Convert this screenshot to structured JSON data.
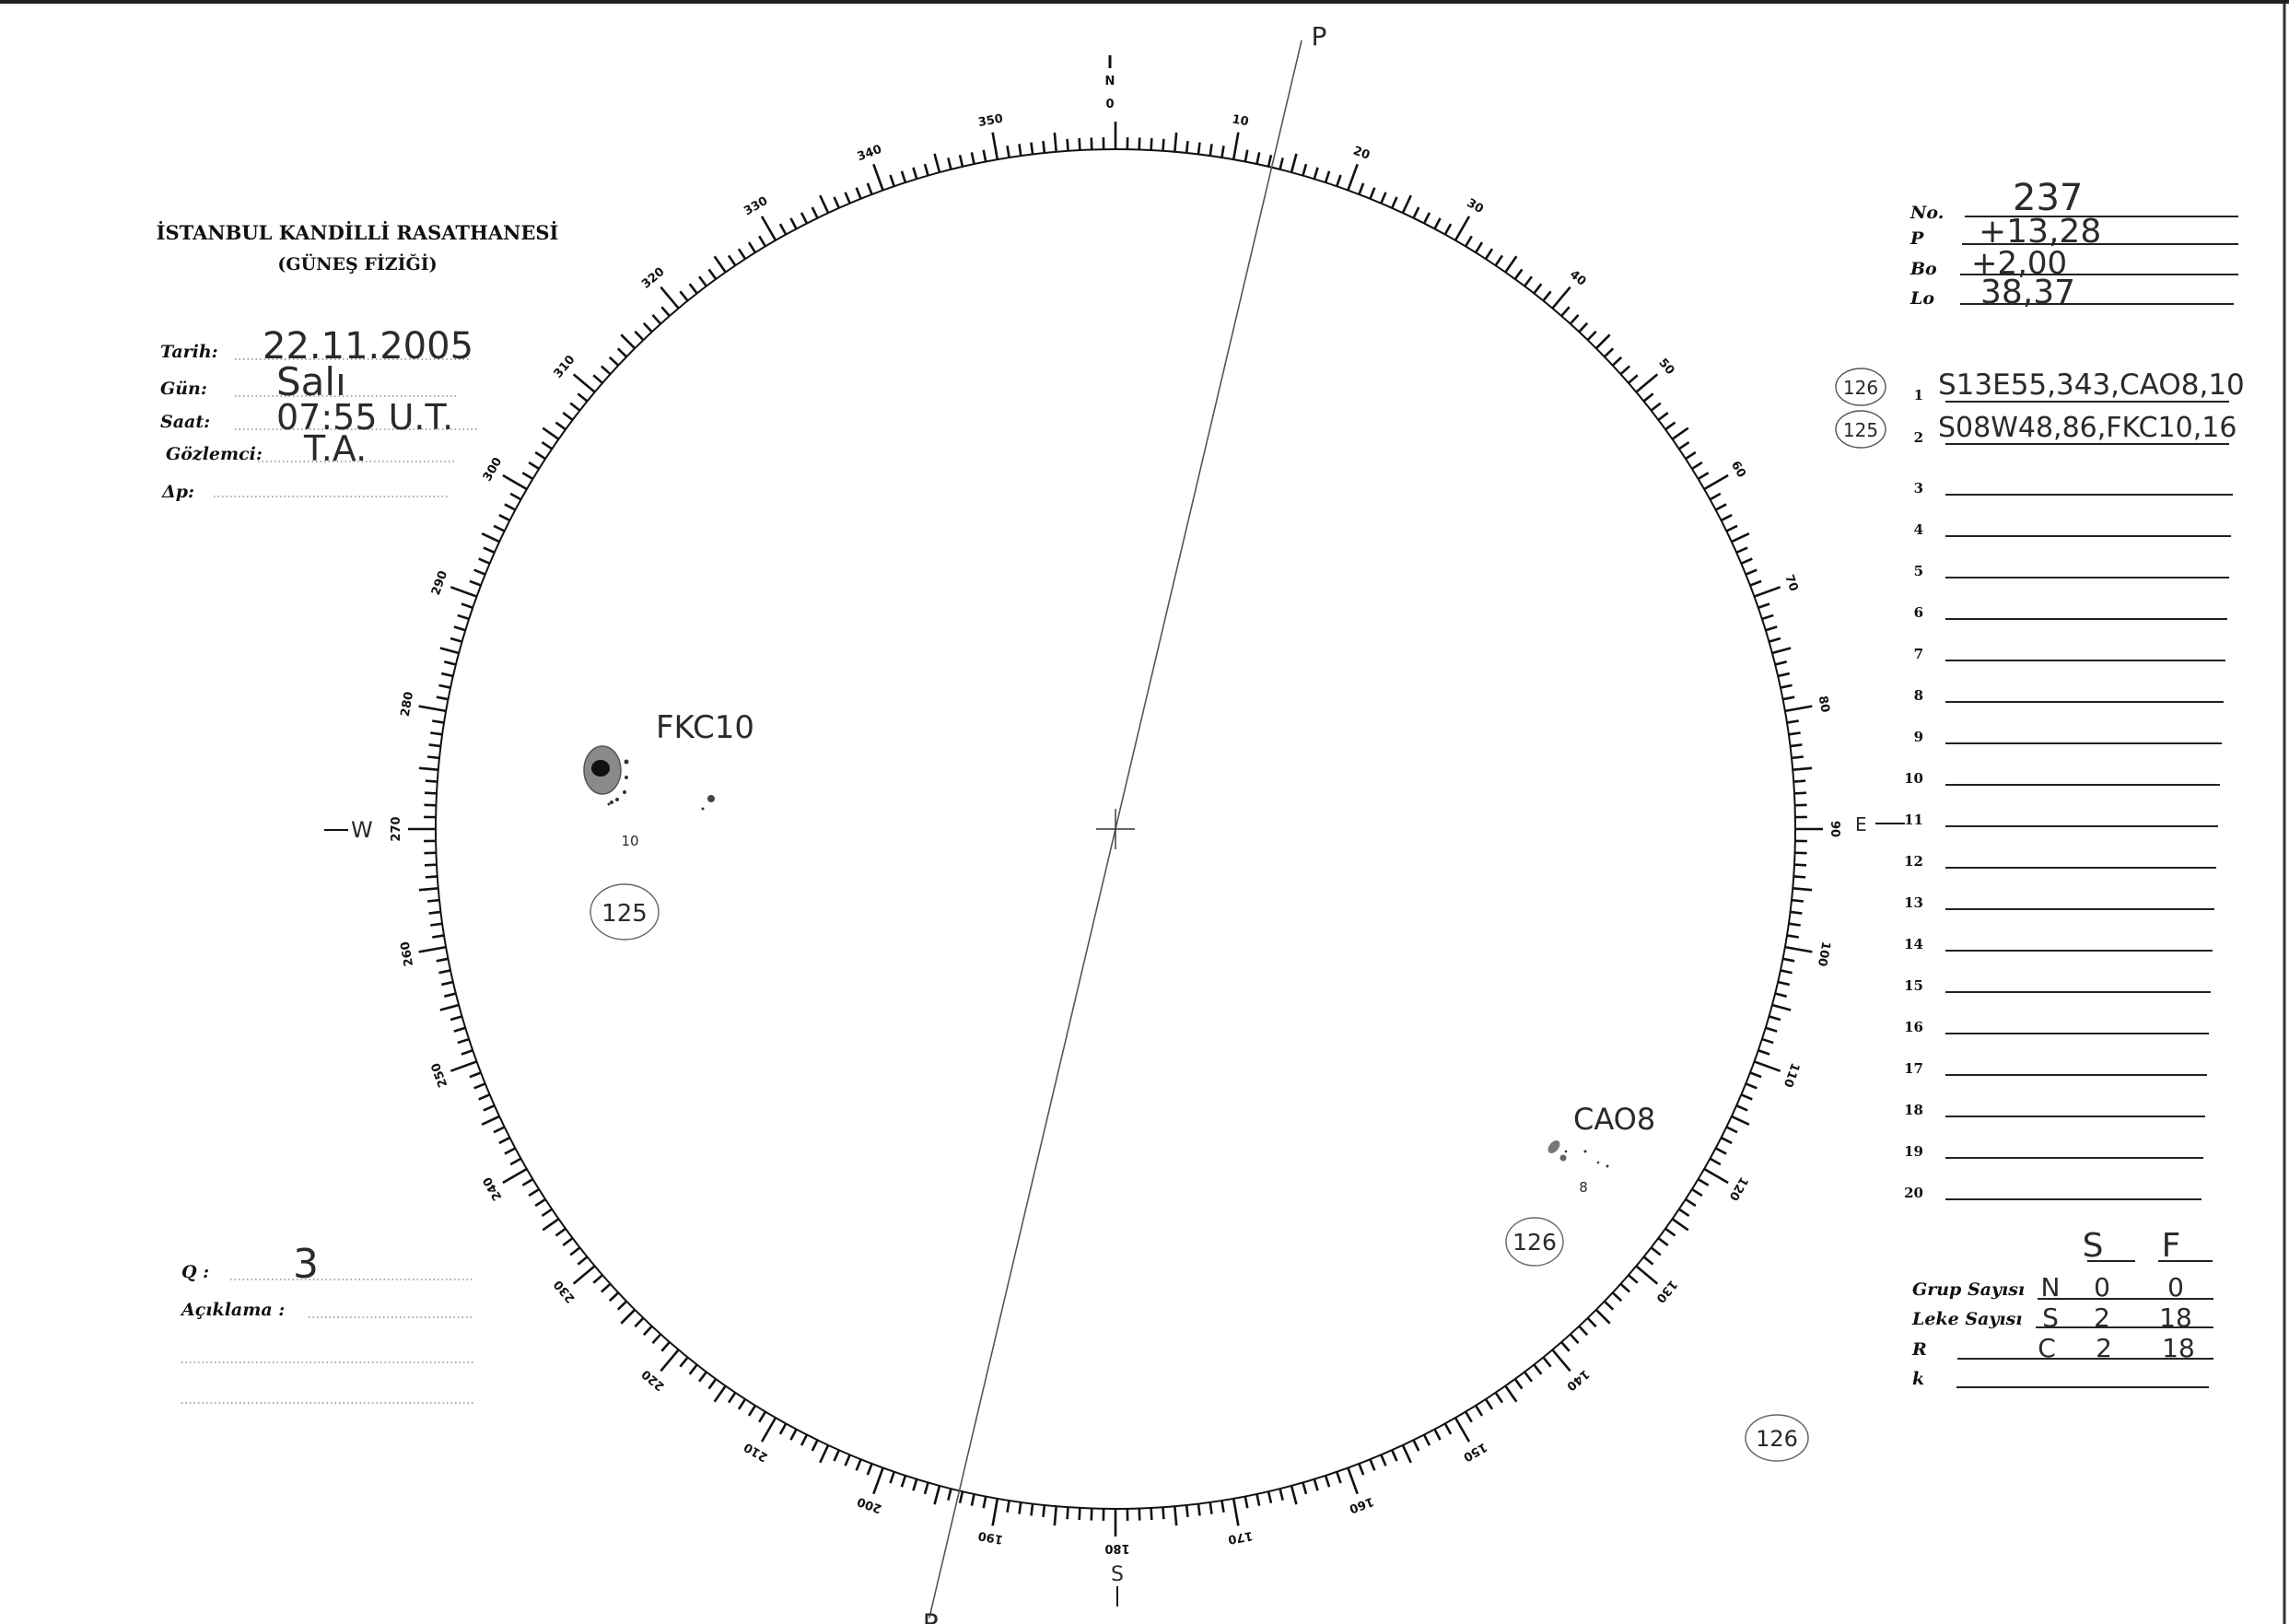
{
  "header": {
    "institution": "İSTANBUL KANDİLLİ RASATHANESİ",
    "department": "(GÜNEŞ FİZİĞİ)"
  },
  "observation": [
    {
      "label": "Tarih:",
      "value": "22.11.2005"
    },
    {
      "label": "Gün:",
      "value": "Salı"
    },
    {
      "label": "Saat:",
      "value": "07:55 U.T."
    },
    {
      "label": "Gözlemci:",
      "value": "T.A."
    },
    {
      "label": "Δp:",
      "value": ""
    }
  ],
  "ephemeris": [
    {
      "label": "No.",
      "value": "237"
    },
    {
      "label": "P",
      "value": "+13,28"
    },
    {
      "label": "Bo",
      "value": "+2,00"
    },
    {
      "label": "Lo",
      "value": "38,37"
    }
  ],
  "groups_list": [
    {
      "num": "1",
      "circled": "126",
      "value": "S13E55,343,CAO8,10"
    },
    {
      "num": "2",
      "circled": "125",
      "value": "S08W48,86,FKC10,16"
    },
    {
      "num": "3",
      "circled": "",
      "value": ""
    },
    {
      "num": "4",
      "circled": "",
      "value": ""
    },
    {
      "num": "5",
      "circled": "",
      "value": ""
    },
    {
      "num": "6",
      "circled": "",
      "value": ""
    },
    {
      "num": "7",
      "circled": "",
      "value": ""
    },
    {
      "num": "8",
      "circled": "",
      "value": ""
    },
    {
      "num": "9",
      "circled": "",
      "value": ""
    },
    {
      "num": "10",
      "circled": "",
      "value": ""
    },
    {
      "num": "11",
      "circled": "",
      "value": ""
    },
    {
      "num": "12",
      "circled": "",
      "value": ""
    },
    {
      "num": "13",
      "circled": "",
      "value": ""
    },
    {
      "num": "14",
      "circled": "",
      "value": ""
    },
    {
      "num": "15",
      "circled": "",
      "value": ""
    },
    {
      "num": "16",
      "circled": "",
      "value": ""
    },
    {
      "num": "17",
      "circled": "",
      "value": ""
    },
    {
      "num": "18",
      "circled": "",
      "value": ""
    },
    {
      "num": "19",
      "circled": "",
      "value": ""
    },
    {
      "num": "20",
      "circled": "",
      "value": ""
    }
  ],
  "counts": {
    "headers": [
      "S",
      "F"
    ],
    "rows": [
      {
        "label": "Grup Sayısı",
        "prefix": "N",
        "s": "0",
        "f": "0"
      },
      {
        "label": "Leke Sayısı",
        "prefix": "S",
        "s": "2",
        "f": "18"
      },
      {
        "label": "R",
        "prefix": "C",
        "s": "2",
        "f": "18"
      },
      {
        "label": "k",
        "prefix": "",
        "s": "",
        "f": ""
      }
    ],
    "extra_circled": "126"
  },
  "quality": {
    "label": "Q :",
    "value": "3"
  },
  "remarks": {
    "label": "Açıklama :",
    "value": ""
  },
  "disk": {
    "cardinals": {
      "N": "N",
      "S": "S",
      "E": "E",
      "W": "W"
    },
    "scale_labels": [
      "0",
      "10",
      "20",
      "30",
      "40",
      "50",
      "60",
      "70",
      "80",
      "90",
      "100",
      "110",
      "120",
      "130",
      "140",
      "150",
      "160",
      "170",
      "180",
      "190",
      "200",
      "210",
      "220",
      "230",
      "240",
      "250",
      "260",
      "270",
      "280",
      "290",
      "300",
      "310",
      "320",
      "330",
      "340",
      "350"
    ],
    "p_axis_label": "P",
    "p_angle_deg": 13.28,
    "sunspot_groups": [
      {
        "name": "FKC10",
        "note": "10",
        "number": "125"
      },
      {
        "name": "CAO8",
        "note": "8",
        "number": "126"
      }
    ]
  }
}
